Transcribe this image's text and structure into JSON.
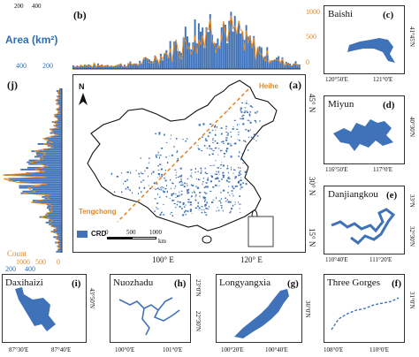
{
  "top_hist": {
    "label": "(b)",
    "left_axis_title": "Area (km²)",
    "left_ticks": [
      "400",
      "200"
    ],
    "right_ticks": [
      "1000",
      "500",
      "0"
    ],
    "left_top_ticks": [
      "200",
      "400"
    ],
    "colors": {
      "bars": "#3f72b8",
      "line": "#e08a2c"
    }
  },
  "side_hist": {
    "label": "(j)",
    "bottom_ticks": [
      "1000",
      "500",
      "0"
    ],
    "area_ticks": [
      "200",
      "400"
    ],
    "count_label": "Count",
    "colors": {
      "bars": "#3f72b8",
      "line": "#e08a2c"
    }
  },
  "main_map": {
    "label": "(a)",
    "north": "N",
    "places": {
      "heihe": "Heihe",
      "tengchong": "Tengchong"
    },
    "legend": {
      "label": "CRD"
    },
    "scale": {
      "ticks": [
        "0",
        "500",
        "1000"
      ],
      "unit": "km"
    },
    "lon_ticks": [
      "100° E",
      "120° E"
    ],
    "lat_ticks": [
      "45° N",
      "30° N",
      "15° N"
    ],
    "colors": {
      "water": "#3f72b8",
      "line": "#e08a2c",
      "land": "#ffffff"
    }
  },
  "insets": [
    {
      "id": "c",
      "label": "(c)",
      "title": "Baishi",
      "lon": [
        "120°50'E",
        "121°0'E"
      ],
      "lat": [
        "41°45'N"
      ]
    },
    {
      "id": "d",
      "label": "(d)",
      "title": "Miyun",
      "lon": [
        "116°50'E",
        "117°0'E"
      ],
      "lat": [
        "40°30'N"
      ]
    },
    {
      "id": "e",
      "label": "(e)",
      "title": "Danjiangkou",
      "lon": [
        "110°40'E",
        "111°20'E"
      ],
      "lat": [
        "33°N",
        "32°30'N"
      ]
    },
    {
      "id": "f",
      "label": "(f)",
      "title": "Three Gorges",
      "lon": [
        "108°0'E",
        "110°0'E"
      ],
      "lat": [
        "31°0'N"
      ]
    },
    {
      "id": "g",
      "label": "(g)",
      "title": "Longyangxia",
      "lon": [
        "100°20'E",
        "100°40'E"
      ],
      "lat": [
        "36°0'N"
      ]
    },
    {
      "id": "h",
      "label": "(h)",
      "title": "Nuozhadu",
      "lon": [
        "100°0'E",
        "101°0'E"
      ],
      "lat": [
        "23°0'N",
        "22°30'N"
      ]
    },
    {
      "id": "i",
      "label": "(i)",
      "title": "Daxihaizi",
      "lon": [
        "87°30'E",
        "87°40'E"
      ],
      "lat": [
        "43°50'N"
      ]
    }
  ]
}
